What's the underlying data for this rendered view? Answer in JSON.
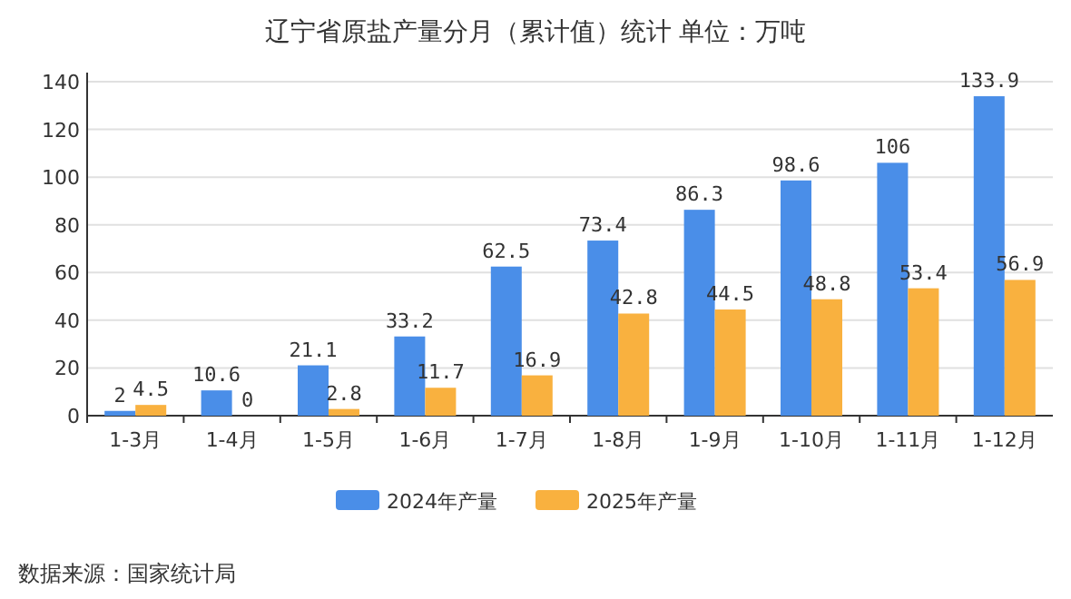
{
  "chart_data": {
    "type": "bar",
    "title": "辽宁省原盐产量分月（累计值）统计  单位：万吨",
    "categories": [
      "1-3月",
      "1-4月",
      "1-5月",
      "1-6月",
      "1-7月",
      "1-8月",
      "1-9月",
      "1-10月",
      "1-11月",
      "1-12月"
    ],
    "series": [
      {
        "name": "2024年产量",
        "color": "#4a8ee8",
        "values": [
          2,
          10.6,
          21.1,
          33.2,
          62.5,
          73.4,
          86.3,
          98.6,
          106,
          133.9
        ]
      },
      {
        "name": "2025年产量",
        "color": "#f9b13f",
        "values": [
          4.5,
          0,
          2.8,
          11.7,
          16.9,
          42.8,
          44.5,
          48.8,
          53.4,
          56.9
        ]
      }
    ],
    "ylim": [
      0,
      140
    ],
    "yticks": [
      0,
      20,
      40,
      60,
      80,
      100,
      120,
      140
    ],
    "grid": "y",
    "legend": "bottom",
    "data_labels": true,
    "annotations": [
      "数据来源：国家统计局"
    ]
  }
}
